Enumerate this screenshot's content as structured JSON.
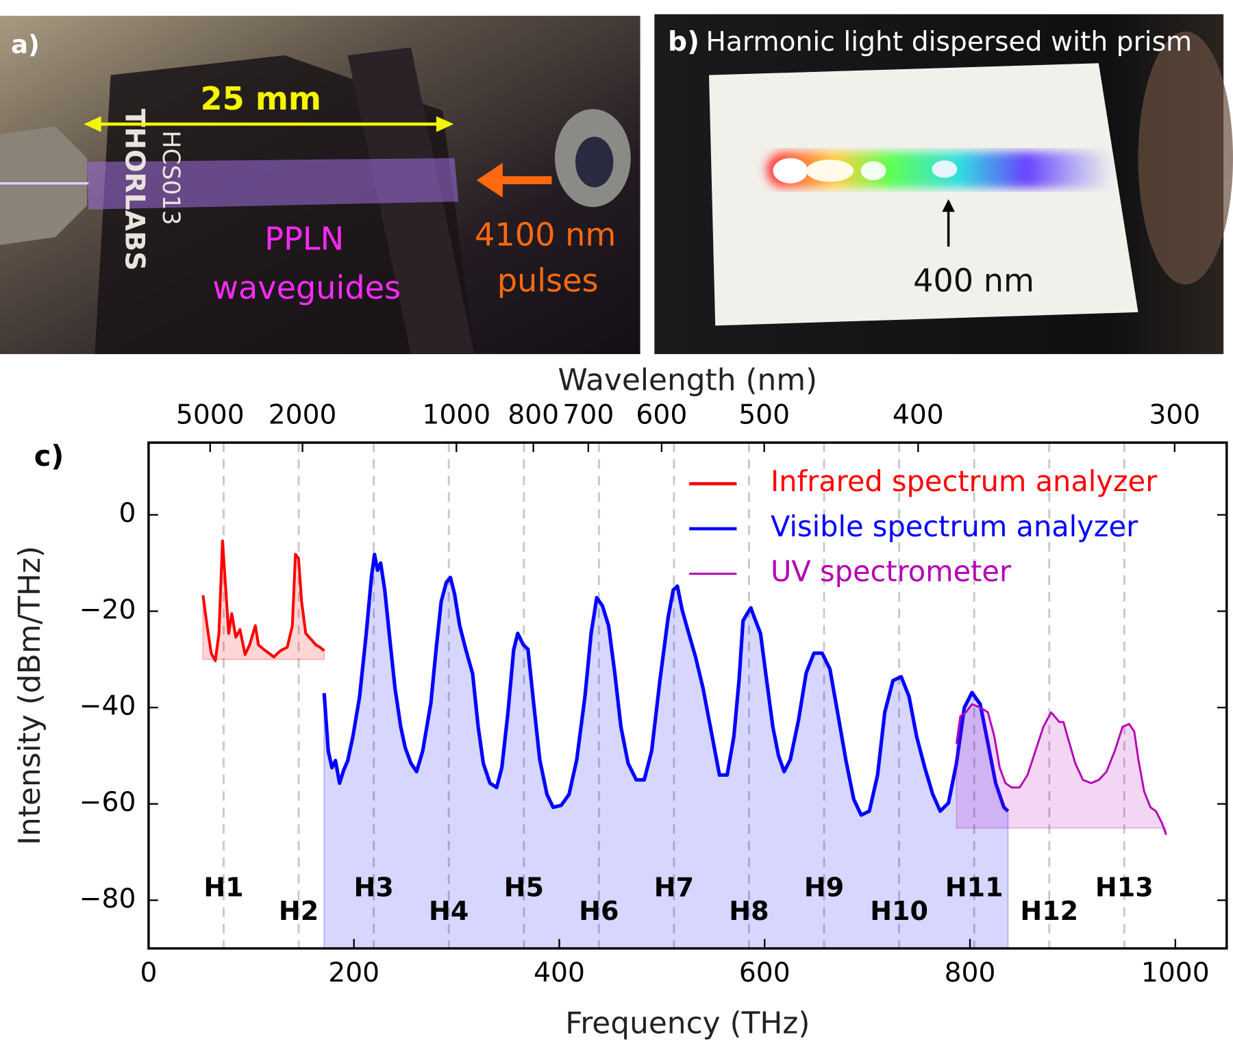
{
  "panels": {
    "a": {
      "label": "a)",
      "scale": "25 mm",
      "chip_brand": "THORLABS",
      "chip_model": "HCS013",
      "waveguide_lines": [
        "PPLN",
        "waveguides"
      ],
      "pulse_lines": [
        "4100 nm",
        "pulses"
      ]
    },
    "b": {
      "label": "b)",
      "title": "Harmonic light dispersed with prism",
      "marker": "400 nm"
    }
  },
  "chart_data": {
    "type": "line",
    "panel_label": "c)",
    "xlabel": "Frequency (THz)",
    "ylabel": "Intensity (dBm/THz)",
    "x2label": "Wavelength (nm)",
    "xlim": [
      0,
      1050
    ],
    "xticks": [
      0,
      200,
      400,
      600,
      800,
      1000
    ],
    "ylim": [
      -90,
      15
    ],
    "yticks": [
      0,
      {
        "value": -20,
        "label": "−20"
      },
      {
        "value": -40,
        "label": "−40"
      },
      {
        "value": -60,
        "label": "−60"
      },
      {
        "value": -80,
        "label": "−80"
      }
    ],
    "x2ticks": [
      5000,
      2000,
      1000,
      800,
      700,
      600,
      500,
      400,
      300
    ],
    "legend": "upper right",
    "harmonics": {
      "labels": [
        "H1",
        "H2",
        "H3",
        "H4",
        "H5",
        "H6",
        "H7",
        "H8",
        "H9",
        "H10",
        "H11",
        "H12",
        "H13"
      ],
      "x": [
        73.1,
        146.2,
        219.3,
        292.4,
        365.5,
        438.6,
        511.7,
        584.8,
        657.9,
        731.0,
        804.1,
        877.2,
        950.3
      ]
    },
    "series": [
      {
        "name": "Infrared spectrum analyzer",
        "color": "#ff0000",
        "fill_to": -30,
        "x": [
          53,
          57,
          61,
          65,
          68.5,
          72,
          75,
          78,
          81,
          85,
          89,
          94,
          98.5,
          104,
          107,
          112,
          117,
          122,
          128.5,
          135,
          140,
          143,
          146,
          149,
          153,
          158.5,
          163,
          167,
          171
        ],
        "values": [
          -16.7,
          -23,
          -28.7,
          -30.3,
          -24.6,
          -5.4,
          -14.8,
          -24.6,
          -20.5,
          -25.4,
          -23.8,
          -29,
          -26.9,
          -23,
          -27,
          -27.9,
          -28.7,
          -29.5,
          -28.2,
          -27.5,
          -23,
          -8.2,
          -9,
          -18,
          -24.6,
          -25.9,
          -27,
          -27.5,
          -28.2
        ]
      },
      {
        "name": "Visible spectrum analyzer",
        "color": "#0000ff",
        "fill_to": -90,
        "x": [
          171,
          175,
          178.6,
          182,
          186,
          190,
          194,
          199,
          205.5,
          212,
          217,
          220,
          223,
          226,
          230,
          235,
          240,
          245.6,
          250,
          255.6,
          261,
          267,
          275,
          280,
          285,
          290,
          294,
          298,
          303,
          309,
          315.6,
          321,
          326,
          332.5,
          339,
          344,
          350,
          355.6,
          359.5,
          365,
          369.5,
          375,
          381,
          388,
          394,
          401.8,
          409.5,
          417,
          425,
          431,
          436.5,
          442,
          448,
          454,
          460,
          467,
          475,
          482.7,
          490,
          498,
          506,
          511,
          515,
          519.6,
          525,
          532.7,
          540,
          548,
          556,
          563.5,
          570,
          575,
          579,
          583,
          586.6,
          590,
          596,
          602,
          608,
          613.5,
          619,
          625,
          633,
          640.5,
          648,
          656,
          663.6,
          671,
          679,
          686.7,
          694,
          702,
          710,
          717,
          725,
          733,
          740.6,
          748,
          756,
          763.7,
          771,
          779,
          786.8,
          794.5,
          802,
          810,
          817.5,
          825,
          833,
          837
        ],
        "values": [
          -37,
          -49,
          -52.5,
          -51,
          -55.7,
          -53,
          -51,
          -46,
          -37.7,
          -24.6,
          -13,
          -8.2,
          -11.5,
          -10,
          -15.6,
          -26,
          -36,
          -44,
          -48.4,
          -51.6,
          -53.3,
          -49,
          -39,
          -28,
          -18,
          -14,
          -13,
          -16.4,
          -23,
          -28,
          -33,
          -44,
          -51.6,
          -55.7,
          -56.6,
          -52.5,
          -41,
          -28,
          -24.6,
          -27,
          -27.9,
          -39,
          -50.8,
          -58,
          -60.7,
          -60.3,
          -58,
          -50.8,
          -37.7,
          -24.6,
          -17.2,
          -18.9,
          -23,
          -32.8,
          -44,
          -51.6,
          -55,
          -55,
          -49,
          -34.4,
          -21.3,
          -15.6,
          -14.8,
          -19.7,
          -23.8,
          -29.5,
          -36,
          -45,
          -54,
          -54,
          -46,
          -34.4,
          -22,
          -20.5,
          -19.3,
          -21.3,
          -24.6,
          -34.4,
          -44,
          -50,
          -53.3,
          -50.8,
          -42.6,
          -32.8,
          -28.7,
          -28.7,
          -32,
          -41,
          -50.8,
          -59,
          -62.3,
          -61.5,
          -54,
          -41,
          -34.4,
          -33.6,
          -37.7,
          -46,
          -52.5,
          -58,
          -61.5,
          -59.8,
          -51.6,
          -40,
          -36.9,
          -39.3,
          -47.5,
          -55.7,
          -60.7,
          -61.5
        ]
      },
      {
        "name": "UV spectrometer",
        "color": "#b300b3",
        "fill_to": -65,
        "x": [
          786.8,
          790.6,
          796,
          802,
          810,
          817.5,
          823.6,
          829,
          834.5,
          840.6,
          848.3,
          856,
          863.7,
          871.5,
          879,
          887,
          891,
          895,
          902.6,
          910,
          918,
          925.6,
          933,
          941,
          948.6,
          955,
          960,
          964,
          969.6,
          975.7,
          981,
          987,
          991
        ],
        "values": [
          -47.5,
          -41.8,
          -41,
          -39.3,
          -40,
          -41,
          -45.9,
          -52.5,
          -55.7,
          -56.6,
          -56.6,
          -54,
          -49,
          -44,
          -41,
          -43,
          -43,
          -46,
          -51.6,
          -55,
          -55.7,
          -55,
          -53.3,
          -49,
          -44,
          -43.4,
          -45,
          -50.8,
          -57.4,
          -60.7,
          -61.5,
          -64,
          -66.4
        ]
      }
    ]
  }
}
